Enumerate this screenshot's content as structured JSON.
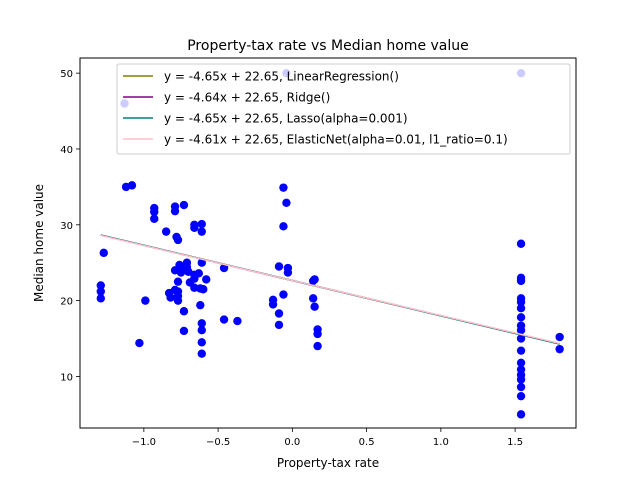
{
  "chart_data": {
    "type": "scatter",
    "title": "Property-tax rate vs Median home value",
    "xlabel": "Property-tax rate",
    "ylabel": "Median home value",
    "xlim": [
      -1.43,
      1.91
    ],
    "ylim": [
      3.2,
      52.0
    ],
    "xticks": [
      -1.0,
      -0.5,
      0.0,
      0.5,
      1.0,
      1.5
    ],
    "xtick_labels": [
      "−1.0",
      "−0.5",
      "0.0",
      "0.5",
      "1.0",
      "1.5"
    ],
    "yticks": [
      10,
      20,
      30,
      40,
      50
    ],
    "ytick_labels": [
      "10",
      "20",
      "30",
      "40",
      "50"
    ],
    "grid": false,
    "legend_position": "top-right",
    "scatter_color": "#0000ff",
    "points": [
      [
        -1.29,
        22.0
      ],
      [
        -1.29,
        21.2
      ],
      [
        -1.29,
        20.3
      ],
      [
        -1.27,
        26.3
      ],
      [
        -1.13,
        46.0
      ],
      [
        -1.12,
        35.0
      ],
      [
        -1.08,
        35.2
      ],
      [
        -1.03,
        14.4
      ],
      [
        -0.99,
        20.0
      ],
      [
        -0.93,
        30.8
      ],
      [
        -0.93,
        31.7
      ],
      [
        -0.93,
        32.2
      ],
      [
        -0.85,
        29.1
      ],
      [
        -0.83,
        21.0
      ],
      [
        -0.82,
        20.4
      ],
      [
        -0.79,
        32.4
      ],
      [
        -0.79,
        31.8
      ],
      [
        -0.79,
        24.0
      ],
      [
        -0.79,
        21.4
      ],
      [
        -0.78,
        28.4
      ],
      [
        -0.77,
        28.0
      ],
      [
        -0.77,
        22.5
      ],
      [
        -0.77,
        21.2
      ],
      [
        -0.77,
        20.6
      ],
      [
        -0.77,
        20.0
      ],
      [
        -0.76,
        24.7
      ],
      [
        -0.75,
        23.7
      ],
      [
        -0.73,
        32.6
      ],
      [
        -0.73,
        24.2
      ],
      [
        -0.73,
        18.6
      ],
      [
        -0.73,
        16.0
      ],
      [
        -0.71,
        25.0
      ],
      [
        -0.71,
        24.4
      ],
      [
        -0.7,
        23.8
      ],
      [
        -0.69,
        22.4
      ],
      [
        -0.66,
        30.0
      ],
      [
        -0.66,
        29.6
      ],
      [
        -0.66,
        23.4
      ],
      [
        -0.66,
        22.9
      ],
      [
        -0.66,
        21.7
      ],
      [
        -0.63,
        23.6
      ],
      [
        -0.62,
        21.6
      ],
      [
        -0.62,
        19.4
      ],
      [
        -0.61,
        30.1
      ],
      [
        -0.61,
        29.1
      ],
      [
        -0.61,
        25.0
      ],
      [
        -0.61,
        17.0
      ],
      [
        -0.61,
        16.1
      ],
      [
        -0.61,
        14.5
      ],
      [
        -0.61,
        13.0
      ],
      [
        -0.6,
        21.5
      ],
      [
        -0.58,
        22.8
      ],
      [
        -0.46,
        24.3
      ],
      [
        -0.46,
        17.5
      ],
      [
        -0.37,
        17.3
      ],
      [
        -0.13,
        20.1
      ],
      [
        -0.13,
        19.5
      ],
      [
        -0.09,
        24.5
      ],
      [
        -0.09,
        18.3
      ],
      [
        -0.09,
        16.8
      ],
      [
        -0.06,
        34.9
      ],
      [
        -0.06,
        29.8
      ],
      [
        -0.06,
        20.8
      ],
      [
        -0.04,
        50.0
      ],
      [
        -0.04,
        32.9
      ],
      [
        -0.03,
        24.3
      ],
      [
        -0.03,
        23.7
      ],
      [
        0.14,
        22.6
      ],
      [
        0.14,
        20.3
      ],
      [
        0.15,
        22.8
      ],
      [
        0.15,
        19.2
      ],
      [
        0.17,
        16.2
      ],
      [
        0.17,
        15.6
      ],
      [
        0.17,
        14.0
      ],
      [
        1.54,
        50.0
      ],
      [
        1.54,
        27.5
      ],
      [
        1.54,
        23.0
      ],
      [
        1.54,
        22.6
      ],
      [
        1.54,
        20.3
      ],
      [
        1.54,
        19.8
      ],
      [
        1.54,
        19.0
      ],
      [
        1.54,
        17.8
      ],
      [
        1.54,
        16.7
      ],
      [
        1.54,
        16.1
      ],
      [
        1.54,
        15.0
      ],
      [
        1.54,
        13.4
      ],
      [
        1.54,
        11.8
      ],
      [
        1.54,
        10.9
      ],
      [
        1.54,
        10.2
      ],
      [
        1.54,
        9.6
      ],
      [
        1.54,
        8.6
      ],
      [
        1.54,
        7.4
      ],
      [
        1.54,
        5.0
      ],
      [
        1.8,
        15.2
      ],
      [
        1.8,
        13.6
      ]
    ],
    "series": [
      {
        "name": "y = -4.65x + 22.65, LinearRegression()",
        "slope": -4.65,
        "intercept": 22.65,
        "color": "#808000"
      },
      {
        "name": "y = -4.64x + 22.65, Ridge()",
        "slope": -4.64,
        "intercept": 22.65,
        "color": "#800080"
      },
      {
        "name": "y = -4.65x + 22.65, Lasso(alpha=0.001)",
        "slope": -4.65,
        "intercept": 22.65,
        "color": "#008080"
      },
      {
        "name": "y = -4.61x + 22.65, ElasticNet(alpha=0.01, l1_ratio=0.1)",
        "slope": -4.61,
        "intercept": 22.65,
        "color": "#ffc0cb"
      }
    ],
    "line_x_range": [
      -1.29,
      1.8
    ]
  }
}
